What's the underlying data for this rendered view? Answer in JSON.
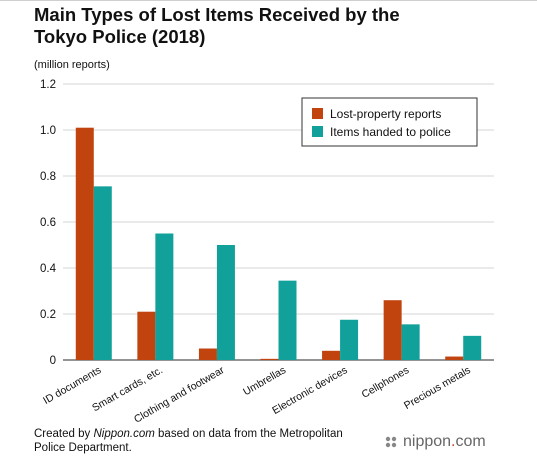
{
  "title": "Main Types of Lost Items Received by the Tokyo Police (2018)",
  "unit_label": "(million reports)",
  "credit": {
    "prefix": "Created by ",
    "site": "Nippon.com",
    "suffix": " based on data from the Metropolitan Police Department."
  },
  "brand": {
    "name": "nippon",
    "dot": ".",
    "tld": "com"
  },
  "chart_data": {
    "type": "bar",
    "categories": [
      "ID documents",
      "Smart cards, etc.",
      "Clothing and footwear",
      "Umbrellas",
      "Electronic devices",
      "Cellphones",
      "Precious metals"
    ],
    "series": [
      {
        "name": "Lost-property reports",
        "color": "#c1440e",
        "values": [
          1.01,
          0.21,
          0.05,
          0.005,
          0.04,
          0.26,
          0.015
        ]
      },
      {
        "name": "Items handed to police",
        "color": "#11a19a",
        "values": [
          0.755,
          0.55,
          0.5,
          0.345,
          0.175,
          0.155,
          0.105
        ]
      }
    ],
    "ylim": [
      0,
      1.2
    ],
    "yticks": [
      "0",
      "0.2",
      "0.4",
      "0.6",
      "0.8",
      "1.0",
      "1.2"
    ],
    "ytick_values": [
      0,
      0.2,
      0.4,
      0.6,
      0.8,
      1.0,
      1.2
    ],
    "grid": true,
    "legend_position": "top-right"
  }
}
